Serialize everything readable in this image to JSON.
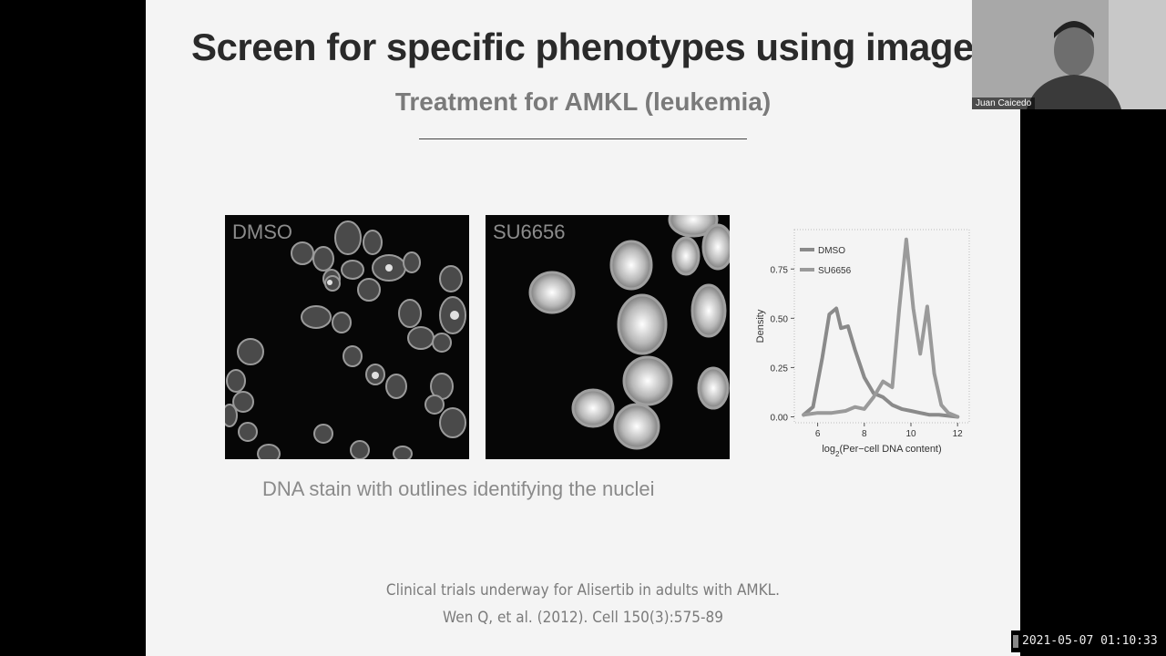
{
  "slide": {
    "title": "Screen for specific phenotypes using images",
    "subtitle": "Treatment for AMKL (leukemia)",
    "panels": [
      {
        "label": "DMSO"
      },
      {
        "label": "SU6656"
      }
    ],
    "caption": "DNA stain with outlines identifying the nuclei",
    "footer_line1": "Clinical trials underway for Alisertib in adults with AMKL.",
    "footer_line2": "Wen Q, et al. (2012). Cell 150(3):575-89"
  },
  "chart_data": {
    "type": "line",
    "xlabel_prefix": "log",
    "xlabel_sub": "2",
    "xlabel_suffix": "(Per−cell DNA content)",
    "ylabel": "Density",
    "xlim": [
      5,
      12.5
    ],
    "ylim": [
      -0.03,
      0.95
    ],
    "x_ticks": [
      "6",
      "8",
      "10",
      "12"
    ],
    "y_ticks": [
      "0.00",
      "0.25",
      "0.50",
      "0.75"
    ],
    "x_tick_values": [
      6,
      8,
      10,
      12
    ],
    "y_tick_values": [
      0.0,
      0.25,
      0.5,
      0.75
    ],
    "legend_position": "top-left",
    "series": [
      {
        "name": "DMSO",
        "color": "#8a8a8a",
        "x": [
          5.4,
          5.8,
          6.2,
          6.5,
          6.8,
          7.0,
          7.3,
          7.6,
          8.0,
          8.4,
          8.8,
          9.2,
          9.6,
          10.0,
          10.4,
          10.8,
          11.2,
          11.6,
          12.0
        ],
        "y": [
          0.01,
          0.05,
          0.3,
          0.52,
          0.55,
          0.45,
          0.46,
          0.34,
          0.2,
          0.12,
          0.1,
          0.06,
          0.04,
          0.03,
          0.02,
          0.01,
          0.01,
          0.005,
          0.0
        ]
      },
      {
        "name": "SU6656",
        "color": "#9a9a9a",
        "x": [
          5.4,
          6.0,
          6.6,
          7.2,
          7.6,
          8.0,
          8.4,
          8.8,
          9.2,
          9.5,
          9.8,
          10.1,
          10.4,
          10.7,
          11.0,
          11.3,
          11.6,
          12.0
        ],
        "y": [
          0.01,
          0.02,
          0.02,
          0.03,
          0.05,
          0.04,
          0.1,
          0.18,
          0.15,
          0.55,
          0.9,
          0.55,
          0.32,
          0.56,
          0.22,
          0.06,
          0.02,
          0.0
        ]
      }
    ]
  },
  "webcam": {
    "name": "Juan Caicedo"
  },
  "timestamp": "2021-05-07  01:10:33"
}
